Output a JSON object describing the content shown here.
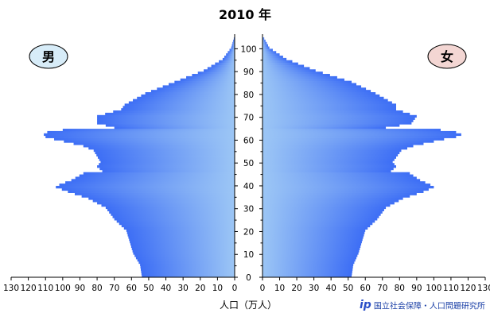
{
  "chart_data": {
    "type": "bar",
    "orientation": "horizontal-population-pyramid",
    "title": "2010 年",
    "xlabel": "人口（万人）",
    "left_series": {
      "name": "男",
      "color": "#3d6ef5",
      "badge_color": "#d7ecf8"
    },
    "right_series": {
      "name": "女",
      "color": "#3d6ef5",
      "badge_color": "#f3d6d3"
    },
    "x_ticks_left": [
      "130",
      "120",
      "110",
      "100",
      "90",
      "80",
      "70",
      "60",
      "50",
      "40",
      "30",
      "20",
      "10",
      "0"
    ],
    "x_ticks_right": [
      "0",
      "10",
      "20",
      "30",
      "40",
      "50",
      "60",
      "70",
      "80",
      "90",
      "100",
      "110",
      "120",
      "130"
    ],
    "x_range": [
      0,
      130
    ],
    "y_ticks": [
      "0",
      "10",
      "20",
      "30",
      "40",
      "50",
      "60",
      "70",
      "80",
      "90",
      "100"
    ],
    "y_range": [
      0,
      105
    ],
    "age_control_points": {
      "ages": [
        0,
        5,
        10,
        15,
        20,
        25,
        30,
        34,
        37,
        39,
        40,
        42,
        45,
        46,
        48,
        50,
        55,
        57,
        60,
        61,
        62,
        63,
        64,
        65,
        66,
        67,
        70,
        73,
        75,
        80,
        85,
        90,
        95,
        100,
        104
      ],
      "male": [
        54,
        55,
        59,
        61,
        63,
        70,
        75,
        85,
        97,
        104,
        102,
        95,
        88,
        77,
        80,
        78,
        82,
        88,
        105,
        110,
        111,
        109,
        100,
        70,
        75,
        80,
        80,
        66,
        64,
        52,
        35,
        18,
        7,
        2,
        0.5
      ],
      "female": [
        52,
        53,
        56,
        58,
        60,
        67,
        72,
        82,
        94,
        100,
        98,
        92,
        86,
        75,
        78,
        76,
        81,
        88,
        106,
        113,
        116,
        113,
        104,
        72,
        80,
        87,
        90,
        78,
        78,
        66,
        52,
        31,
        14,
        4,
        1
      ]
    }
  },
  "credit": {
    "text": "国立社会保障・人口問題研究所",
    "logo": "ip"
  }
}
